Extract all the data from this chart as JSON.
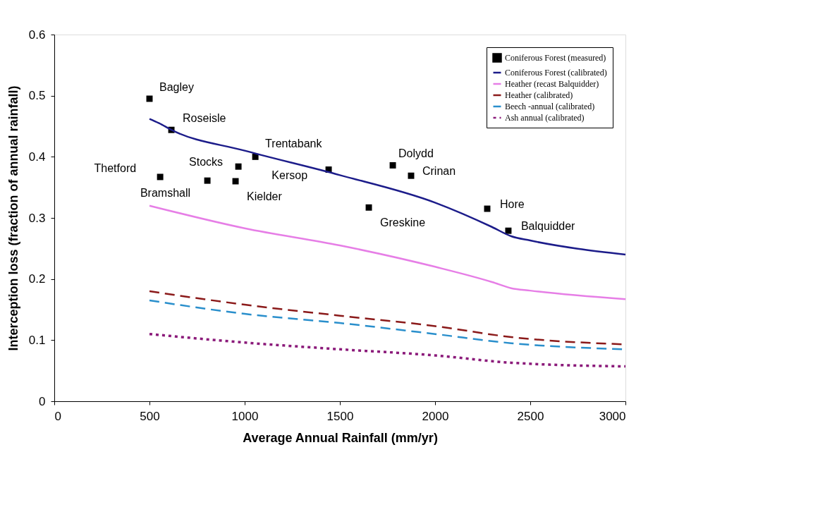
{
  "chart_data": {
    "type": "line",
    "xlabel": "Average Annual Rainfall (mm/yr)",
    "ylabel": "Interception loss (fraction of annual rainfall)",
    "xlim": [
      0,
      3000
    ],
    "xticks": [
      0,
      500,
      1000,
      1500,
      2000,
      2500,
      3000
    ],
    "ylim": [
      0,
      0.6
    ],
    "yticks": [
      0,
      0.1,
      0.2,
      0.3,
      0.4,
      0.5,
      0.6
    ],
    "grid": false,
    "legend": "top right",
    "series": [
      {
        "name": "Coniferous Forest (measured)",
        "type": "scatter",
        "marker": "square",
        "color": "#000000",
        "x": [
          500,
          615,
          1056,
          967,
          556,
          804,
          952,
          1441,
          1778,
          1874,
          1652,
          2274,
          2385
        ],
        "values": [
          0.495,
          0.444,
          0.4,
          0.384,
          0.367,
          0.361,
          0.36,
          0.379,
          0.386,
          0.369,
          0.317,
          0.315,
          0.279
        ]
      },
      {
        "name": "Coniferous Forest (calibrated)",
        "type": "line",
        "line_style": "solid",
        "color": "#1c1c8a",
        "x": [
          500,
          550,
          615,
          1000,
          1500,
          2000,
          2300,
          2400,
          2500,
          3000
        ],
        "values": [
          0.462,
          0.455,
          0.444,
          0.41,
          0.37,
          0.325,
          0.285,
          0.27,
          0.263,
          0.24
        ]
      },
      {
        "name": "Heather (recast Balquidder)",
        "type": "line",
        "line_style": "solid",
        "color": "#e67ee6",
        "x": [
          500,
          1000,
          1500,
          2000,
          2300,
          2400,
          2500,
          3000
        ],
        "values": [
          0.32,
          0.283,
          0.255,
          0.22,
          0.195,
          0.185,
          0.181,
          0.167
        ]
      },
      {
        "name": "Heather (calibrated)",
        "type": "line",
        "line_style": "dashed",
        "color": "#8b1a1a",
        "x": [
          500,
          1000,
          1500,
          2000,
          2400,
          3000
        ],
        "values": [
          0.18,
          0.158,
          0.14,
          0.123,
          0.105,
          0.093
        ]
      },
      {
        "name": "Beech -annual (calibrated)",
        "type": "line",
        "line_style": "dashed",
        "color": "#2a8fcc",
        "x": [
          500,
          1000,
          1500,
          2000,
          2400,
          3000
        ],
        "values": [
          0.165,
          0.143,
          0.128,
          0.11,
          0.095,
          0.085
        ]
      },
      {
        "name": "Ash annual (calibrated)",
        "type": "line",
        "line_style": "dotted",
        "color": "#8b1a7a",
        "x": [
          500,
          1000,
          1500,
          2000,
          2400,
          3000
        ],
        "values": [
          0.11,
          0.096,
          0.085,
          0.075,
          0.063,
          0.057
        ]
      }
    ],
    "annotations": [
      {
        "text": "Bagley",
        "x": 500,
        "y": 0.495
      },
      {
        "text": "Roseisle",
        "x": 615,
        "y": 0.444
      },
      {
        "text": "Trentabank",
        "x": 1056,
        "y": 0.4
      },
      {
        "text": "Stocks",
        "x": 967,
        "y": 0.384
      },
      {
        "text": "Thetford",
        "x": 556,
        "y": 0.367
      },
      {
        "text": "Bramshall",
        "x": 804,
        "y": 0.361
      },
      {
        "text": "Kielder",
        "x": 952,
        "y": 0.36
      },
      {
        "text": "Kersop",
        "x": 1441,
        "y": 0.379
      },
      {
        "text": "Dolydd",
        "x": 1778,
        "y": 0.386
      },
      {
        "text": "Crinan",
        "x": 1874,
        "y": 0.369
      },
      {
        "text": "Greskine",
        "x": 1652,
        "y": 0.317
      },
      {
        "text": "Hore",
        "x": 2274,
        "y": 0.315
      },
      {
        "text": "Balquidder",
        "x": 2385,
        "y": 0.279
      }
    ]
  }
}
